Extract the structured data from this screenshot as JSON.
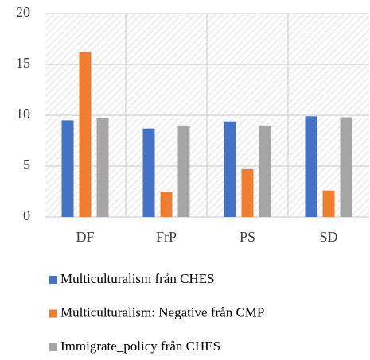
{
  "chart_data": {
    "type": "bar",
    "categories": [
      "DF",
      "FrP",
      "PS",
      "SD"
    ],
    "series": [
      {
        "name": "Multiculturalism från CHES",
        "color": "#4472c4",
        "values": [
          9.5,
          8.7,
          9.4,
          9.9
        ]
      },
      {
        "name": "Multiculturalism: Negative från CMP",
        "color": "#ed7d31",
        "values": [
          16.2,
          2.5,
          4.7,
          2.6
        ]
      },
      {
        "name": "Immigrate_policy från CHES",
        "color": "#a5a5a5",
        "values": [
          9.7,
          9.0,
          9.0,
          9.8
        ]
      }
    ],
    "ylim": [
      0,
      20
    ],
    "yticks": [
      0,
      5,
      10,
      15,
      20
    ],
    "grid": true,
    "legend": "bottom"
  }
}
